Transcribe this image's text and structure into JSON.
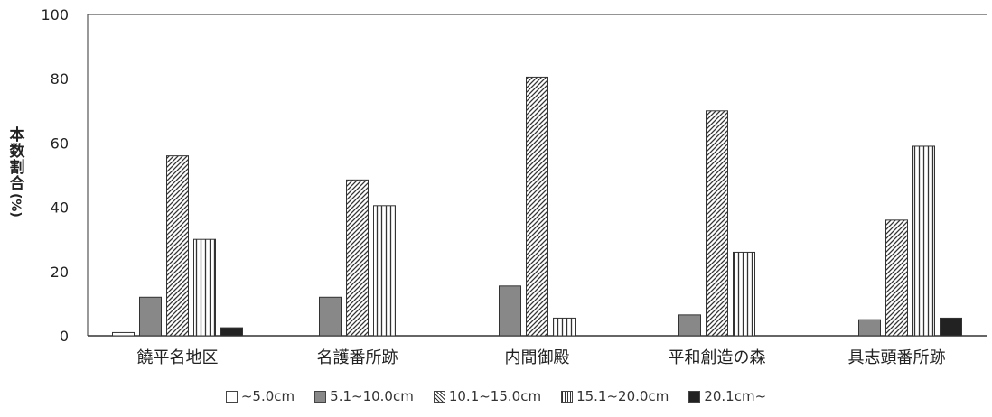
{
  "chart_data": {
    "type": "bar",
    "title": "",
    "xlabel": "",
    "ylabel": "本数割合",
    "ylabel_unit": "(%)",
    "ylim": [
      0,
      100
    ],
    "yticks": [
      0,
      20,
      40,
      60,
      80,
      100
    ],
    "categories": [
      "饒平名地区",
      "名護番所跡",
      "内間御殿",
      "平和創造の森",
      "具志頭番所跡"
    ],
    "series": [
      {
        "name": "~5.0cm",
        "values": [
          1.0,
          0,
          0,
          0,
          0
        ],
        "pattern": "white"
      },
      {
        "name": "5.1~10.0cm",
        "values": [
          12,
          12,
          15.5,
          6.5,
          5
        ],
        "pattern": "gray"
      },
      {
        "name": "10.1~15.0cm",
        "values": [
          56,
          48.5,
          80.5,
          70,
          36
        ],
        "pattern": "diagonal"
      },
      {
        "name": "15.1~20.0cm",
        "values": [
          30,
          40.5,
          5.5,
          26,
          59
        ],
        "pattern": "vertical"
      },
      {
        "name": "20.1cm~",
        "values": [
          2.5,
          0,
          0,
          0,
          5.5
        ],
        "pattern": "black"
      }
    ],
    "legend_position": "bottom",
    "grid": false
  }
}
